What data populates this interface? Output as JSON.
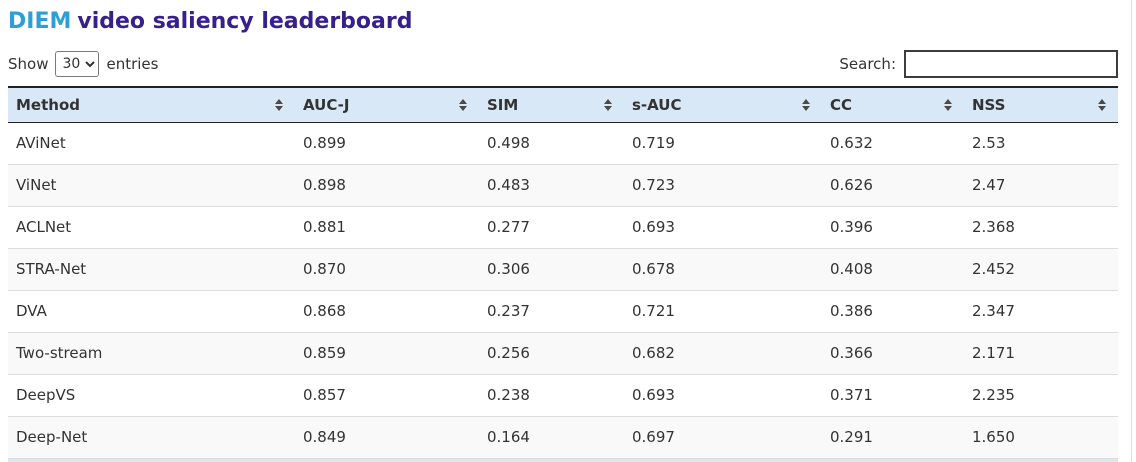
{
  "title": {
    "highlight": "DIEM",
    "rest": "video saliency leaderboard"
  },
  "controls": {
    "show_label": "Show",
    "entries_label": "entries",
    "page_length_value": "30",
    "search_label": "Search:",
    "search_value": ""
  },
  "table": {
    "columns": [
      {
        "label": "Method"
      },
      {
        "label": "AUC-J"
      },
      {
        "label": "SIM"
      },
      {
        "label": "s-AUC"
      },
      {
        "label": "CC"
      },
      {
        "label": "NSS"
      }
    ],
    "rows": [
      {
        "method": "AViNet",
        "values": [
          "0.899",
          "0.498",
          "0.719",
          "0.632",
          "2.53"
        ]
      },
      {
        "method": "ViNet",
        "values": [
          "0.898",
          "0.483",
          "0.723",
          "0.626",
          "2.47"
        ]
      },
      {
        "method": "ACLNet",
        "values": [
          "0.881",
          "0.277",
          "0.693",
          "0.396",
          "2.368"
        ]
      },
      {
        "method": "STRA-Net",
        "values": [
          "0.870",
          "0.306",
          "0.678",
          "0.408",
          "2.452"
        ]
      },
      {
        "method": "DVA",
        "values": [
          "0.868",
          "0.237",
          "0.721",
          "0.386",
          "2.347"
        ]
      },
      {
        "method": "Two-stream",
        "values": [
          "0.859",
          "0.256",
          "0.682",
          "0.366",
          "2.171"
        ]
      },
      {
        "method": "DeepVS",
        "values": [
          "0.857",
          "0.238",
          "0.693",
          "0.371",
          "2.235"
        ]
      },
      {
        "method": "Deep-Net",
        "values": [
          "0.849",
          "0.164",
          "0.697",
          "0.291",
          "1.650"
        ]
      }
    ]
  },
  "icons": {
    "sort_icon": "sort-both-arrows"
  },
  "colors": {
    "title_highlight": "#2E9FD6",
    "title_rest": "#38208C",
    "header_bg": "#D9E8F6",
    "row_stripe": "#F9F9F9",
    "row_border": "#DDDDDD",
    "header_border": "#232323",
    "text": "#333333"
  }
}
